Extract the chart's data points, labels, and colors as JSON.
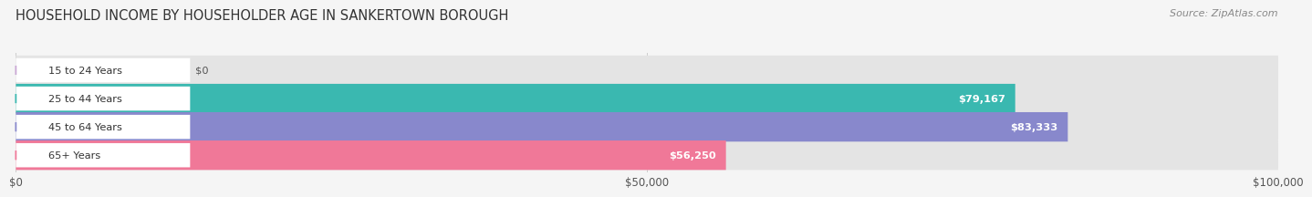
{
  "title": "HOUSEHOLD INCOME BY HOUSEHOLDER AGE IN SANKERTOWN BOROUGH",
  "source": "Source: ZipAtlas.com",
  "categories": [
    "15 to 24 Years",
    "25 to 44 Years",
    "45 to 64 Years",
    "65+ Years"
  ],
  "values": [
    0,
    79167,
    83333,
    56250
  ],
  "bar_colors": [
    "#c9a8d4",
    "#3ab8b0",
    "#8888cc",
    "#f07898"
  ],
  "value_labels": [
    "$0",
    "$79,167",
    "$83,333",
    "$56,250"
  ],
  "xlim": [
    0,
    100000
  ],
  "xticks": [
    0,
    50000,
    100000
  ],
  "xtick_labels": [
    "$0",
    "$50,000",
    "$100,000"
  ],
  "background_color": "#f5f5f5",
  "bar_bg_color": "#e4e4e4",
  "title_fontsize": 10.5,
  "source_fontsize": 8
}
